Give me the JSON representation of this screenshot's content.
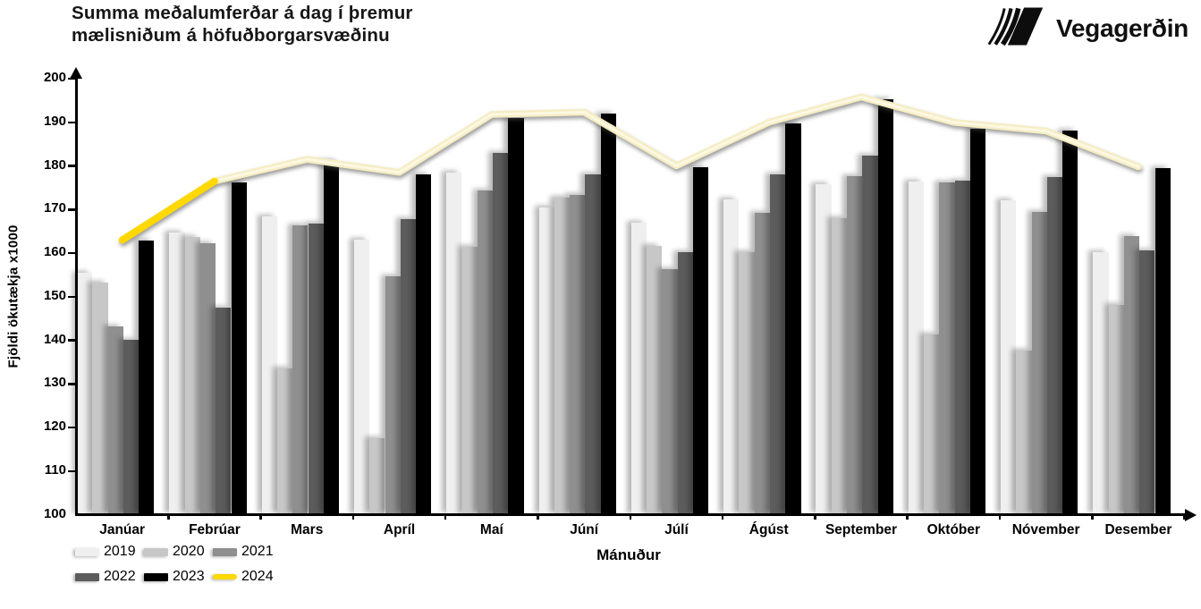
{
  "header": {
    "title": "Summa meðalumferðar á dag í þremur\nmælisniðum á höfuðborgarsvæðinu",
    "logo_text": "Vegagerðin"
  },
  "chart_data": {
    "type": "bar",
    "title": "Summa meðalumferðar á dag í þremur mælisniðum á höfuðborgarsvæðinu",
    "xlabel": "Mánuður",
    "ylabel": "Fjöldi ökutækja x1000",
    "ylim": [
      100,
      200
    ],
    "ytick_step": 10,
    "y_tick_labels": [
      "100",
      "110",
      "120",
      "130",
      "140",
      "150",
      "160",
      "170",
      "180",
      "190",
      "200"
    ],
    "grid": false,
    "legend_position": "bottom-left",
    "categories": [
      "Janúar",
      "Febrúar",
      "Mars",
      "Apríl",
      "Maí",
      "Júní",
      "Júlí",
      "Ágúst",
      "September",
      "Október",
      "Nóvember",
      "Desember"
    ],
    "series": [
      {
        "name": "2019",
        "type": "bar",
        "color": "#EFEFEF",
        "values": [
          155.5,
          164.8,
          168.4,
          163.0,
          178.4,
          170.5,
          167.0,
          172.4,
          175.7,
          176.4,
          172.2,
          160.3
        ]
      },
      {
        "name": "2020",
        "type": "bar",
        "color": "#C7C7C7",
        "values": [
          153.2,
          163.6,
          133.6,
          117.6,
          161.5,
          172.7,
          161.6,
          160.2,
          168.0,
          141.3,
          137.7,
          148.2
        ]
      },
      {
        "name": "2021",
        "type": "bar",
        "color": "#8F8F8F",
        "values": [
          143.2,
          162.2,
          166.3,
          154.6,
          174.3,
          173.3,
          156.3,
          169.3,
          177.6,
          176.3,
          169.4,
          164.0
        ]
      },
      {
        "name": "2022",
        "type": "bar",
        "color": "#5C5C5C",
        "values": [
          140.1,
          147.4,
          166.8,
          167.7,
          183.0,
          178.1,
          160.2,
          178.1,
          182.3,
          176.7,
          177.5,
          160.7
        ]
      },
      {
        "name": "2023",
        "type": "bar",
        "color": "#000000",
        "values": [
          162.8,
          176.2,
          181.2,
          178.1,
          190.9,
          192.0,
          179.6,
          189.7,
          195.2,
          188.5,
          188.2,
          179.5
        ]
      },
      {
        "name": "2024",
        "type": "line",
        "color": "#F6EDC3",
        "color_first_segment": "#FFD800",
        "values": [
          163.0,
          176.5,
          181.5,
          178.5,
          191.8,
          192.3,
          180.0,
          190.0,
          195.8,
          190.0,
          188.0,
          179.8
        ]
      }
    ]
  }
}
